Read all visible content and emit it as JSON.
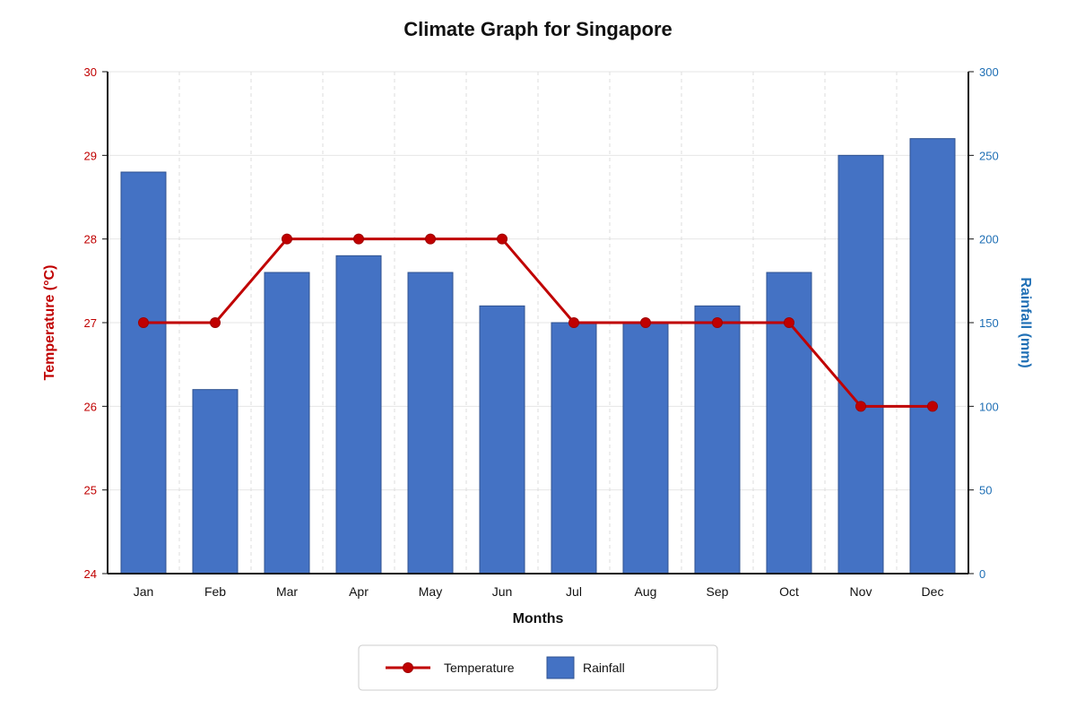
{
  "chart_data": {
    "type": "bar+line",
    "title": "Climate Graph for Singapore",
    "xlabel": "Months",
    "categories": [
      "Jan",
      "Feb",
      "Mar",
      "Apr",
      "May",
      "Jun",
      "Jul",
      "Aug",
      "Sep",
      "Oct",
      "Nov",
      "Dec"
    ],
    "series": [
      {
        "name": "Temperature",
        "type": "line",
        "axis": "left",
        "color": "#c00000",
        "values": [
          27,
          27,
          28,
          28,
          28,
          28,
          27,
          27,
          27,
          27,
          26,
          26
        ]
      },
      {
        "name": "Rainfall",
        "type": "bar",
        "axis": "right",
        "color": "#4472c4",
        "values": [
          240,
          110,
          180,
          190,
          180,
          160,
          150,
          150,
          160,
          180,
          250,
          260
        ]
      }
    ],
    "y_left": {
      "label": "Temperature (°C)",
      "range": [
        24,
        30
      ],
      "ticks": [
        "24",
        "25",
        "26",
        "27",
        "28",
        "29",
        "30"
      ],
      "color": "#c00000"
    },
    "y_right": {
      "label": "Rainfall (mm)",
      "range": [
        0,
        300
      ],
      "ticks": [
        "0",
        "50",
        "100",
        "150",
        "200",
        "250",
        "300"
      ],
      "color": "#1f6fb5"
    },
    "grid": true,
    "legend_position": "bottom-center"
  }
}
